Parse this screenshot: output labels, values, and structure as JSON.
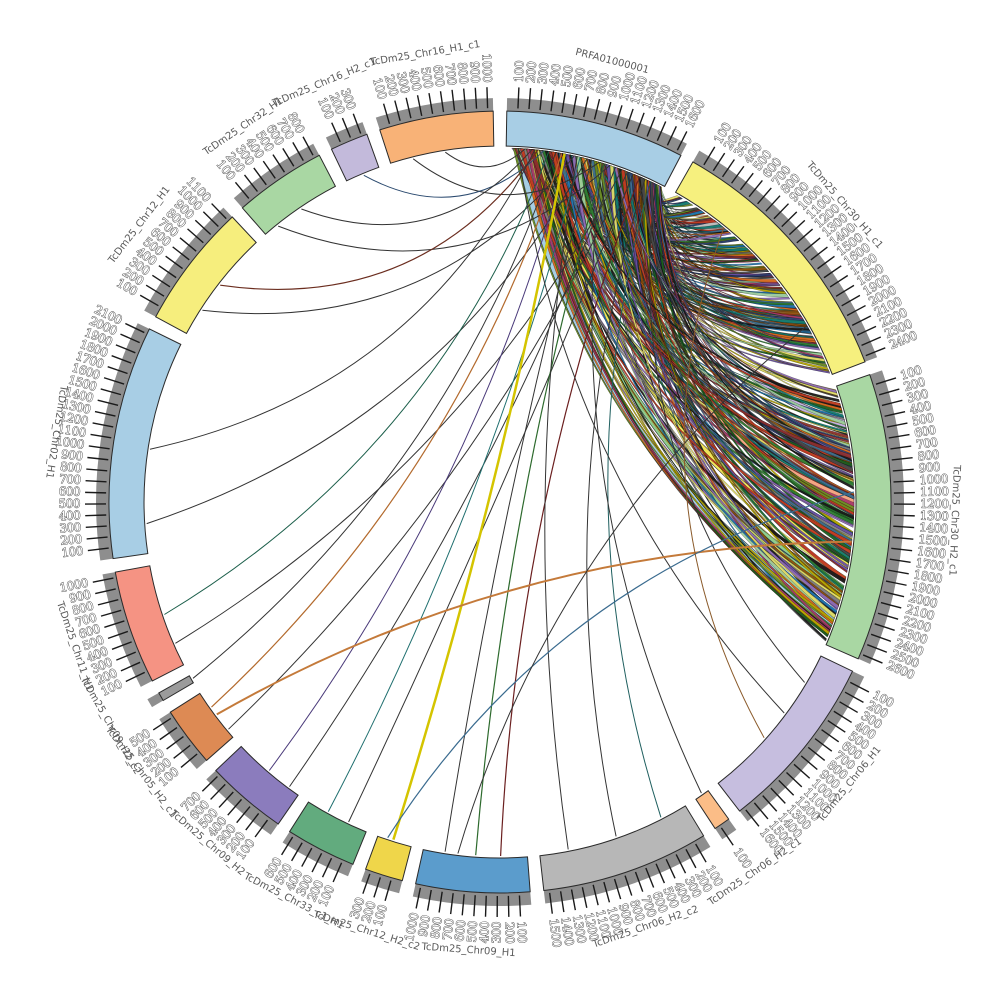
{
  "figure": {
    "kind": "circos-synteny-plot",
    "background": "#ffffff",
    "band_outline": "#2a2a2a",
    "outer_band_color": "#8e8e8e",
    "tick_color": "#1a1a1a",
    "label_color": "#5a5a5a"
  },
  "chart_data": {
    "type": "chord",
    "title": "",
    "tick_interval": 100,
    "gap_deg": 2.0,
    "start_deg": 1.0,
    "random_seed": 20230,
    "segments": [
      {
        "label": "PRFA01000001",
        "length": 1650,
        "color": "#a8cee5"
      },
      {
        "label": "TcDm25_Chr30_H1_c1",
        "length": 2450,
        "color": "#f6f07e"
      },
      {
        "label": "TcDm25_Chr30_H2_c1",
        "length": 2650,
        "color": "#a9d7a3"
      },
      {
        "label": "TcDm25_Chr06_H1",
        "length": 1650,
        "color": "#c6bedf"
      },
      {
        "label": "TcDm25_Chr06_H2_c1",
        "length": 150,
        "color": "#fbbd87"
      },
      {
        "label": "TcDm25_Chr06_H2_c2",
        "length": 1550,
        "color": "#b7b7b7"
      },
      {
        "label": "TcDm25_Chr09_H1",
        "length": 1050,
        "color": "#5b9ccc"
      },
      {
        "label": "TcDm25_Chr12_H2_c2",
        "length": 350,
        "color": "#efd64a"
      },
      {
        "label": "TcDm25_Chr33_c1_H1",
        "length": 650,
        "color": "#62ab7e"
      },
      {
        "label": "TcDm25_Chr09_H2",
        "length": 750,
        "color": "#8b7cbd"
      },
      {
        "label": "TcDm25_Chr05_H2_c1",
        "length": 550,
        "color": "#dd8a54"
      },
      {
        "label": "TcDm25_Chr09_H2_c2",
        "length": 80,
        "color": "#9b9b9b"
      },
      {
        "label": "TcDm25_Chr11_H1",
        "length": 1050,
        "color": "#f59383"
      },
      {
        "label": "TcDm25_Chr02_H1",
        "length": 2150,
        "color": "#a8cee5"
      },
      {
        "label": "TcDm25_Chr12_H1",
        "length": 1150,
        "color": "#f6ee7d"
      },
      {
        "label": "TcDm25_Chr32_H1",
        "length": 850,
        "color": "#a9d7a3"
      },
      {
        "label": "TcDm25_Chr16_H2_c1",
        "length": 350,
        "color": "#c3badb"
      },
      {
        "label": "TcDm25_Chr16_H1_c1",
        "length": 1050,
        "color": "#f8b277"
      }
    ],
    "link_palette": [
      "#1a1a1a",
      "#4a4a4a",
      "#7f7f7f",
      "#c23b22",
      "#8b2e2e",
      "#2e7d32",
      "#1b5e20",
      "#6b8e23",
      "#1f77b4",
      "#2c3e70",
      "#6a51a3",
      "#8e6bb5",
      "#d96a1f",
      "#8c510a",
      "#b8a800",
      "#11796f",
      "#a83a6a",
      "#3c6e8f",
      "#e3dc66",
      "#9ecf9e"
    ],
    "bundles": [
      {
        "from": [
          "PRFA01000001",
          60,
          1620
        ],
        "to": [
          "TcDm25_Chr30_H1_c1",
          30,
          2430
        ],
        "count": 160
      },
      {
        "from": [
          "PRFA01000001",
          60,
          1620
        ],
        "to": [
          "TcDm25_Chr30_H2_c1",
          40,
          2620
        ],
        "count": 165
      }
    ],
    "wide_ribbons": [
      {
        "from": [
          "PRFA01000001",
          150,
          70
        ],
        "to": [
          "TcDm25_Chr30_H2_c1",
          2430,
          130
        ],
        "color": "#a6cee3"
      },
      {
        "from": [
          "PRFA01000001",
          300,
          55
        ],
        "to": [
          "TcDm25_Chr30_H2_c1",
          2140,
          110
        ],
        "color": "#8fcf8f"
      },
      {
        "from": [
          "PRFA01000001",
          430,
          50
        ],
        "to": [
          "TcDm25_Chr30_H2_c1",
          1760,
          95
        ],
        "color": "#f0e35a"
      },
      {
        "from": [
          "PRFA01000001",
          620,
          45
        ],
        "to": [
          "TcDm25_Chr30_H2_c1",
          1210,
          80
        ],
        "color": "#f4a582"
      },
      {
        "from": [
          "PRFA01000001",
          810,
          40
        ],
        "to": [
          "TcDm25_Chr30_H1_c1",
          1900,
          90
        ],
        "color": "#a6cee3"
      },
      {
        "from": [
          "PRFA01000001",
          1000,
          40
        ],
        "to": [
          "TcDm25_Chr30_H1_c1",
          980,
          75
        ],
        "color": "#9fd89f"
      },
      {
        "from": [
          "PRFA01000001",
          1180,
          35
        ],
        "to": [
          "TcDm25_Chr30_H1_c1",
          540,
          60
        ],
        "color": "#bcbcbc"
      },
      {
        "from": [
          "PRFA01000001",
          1420,
          35
        ],
        "to": [
          "TcDm25_Chr30_H2_c1",
          400,
          60
        ],
        "color": "#c5b3e0"
      }
    ],
    "single_links": [
      {
        "from": [
          "PRFA01000001",
          190
        ],
        "to": [
          "TcDm25_Chr16_H1_c1",
          560
        ],
        "color": "#333333",
        "width": 1
      },
      {
        "from": [
          "PRFA01000001",
          950
        ],
        "to": [
          "TcDm25_Chr16_H1_c1",
          230
        ],
        "color": "#333333",
        "width": 1
      },
      {
        "from": [
          "PRFA01000001",
          380
        ],
        "to": [
          "TcDm25_Chr16_H2_c1",
          180
        ],
        "color": "#2b4a6f",
        "width": 1
      },
      {
        "from": [
          "PRFA01000001",
          260
        ],
        "to": [
          "TcDm25_Chr32_H1",
          440
        ],
        "color": "#333333",
        "width": 1
      },
      {
        "from": [
          "PRFA01000001",
          1060
        ],
        "to": [
          "TcDm25_Chr32_H1",
          150
        ],
        "color": "#333333",
        "width": 1
      },
      {
        "from": [
          "PRFA01000001",
          320
        ],
        "to": [
          "TcDm25_Chr12_H1",
          590
        ],
        "color": "#6b2d1f",
        "width": 1.2
      },
      {
        "from": [
          "PRFA01000001",
          690
        ],
        "to": [
          "TcDm25_Chr12_H1",
          280
        ],
        "color": "#333333",
        "width": 1
      },
      {
        "from": [
          "PRFA01000001",
          290
        ],
        "to": [
          "TcDm25_Chr02_H1",
          1050
        ],
        "color": "#333333",
        "width": 1
      },
      {
        "from": [
          "PRFA01000001",
          820
        ],
        "to": [
          "TcDm25_Chr02_H1",
          300
        ],
        "color": "#333333",
        "width": 1
      },
      {
        "from": [
          "PRFA01000001",
          430
        ],
        "to": [
          "TcDm25_Chr11_H1",
          540
        ],
        "color": "#1b5e4a",
        "width": 1
      },
      {
        "from": [
          "PRFA01000001",
          1190
        ],
        "to": [
          "TcDm25_Chr11_H1",
          230
        ],
        "color": "#333333",
        "width": 1
      },
      {
        "from": [
          "PRFA01000001",
          500
        ],
        "to": [
          "TcDm25_Chr09_H2_c2",
          40
        ],
        "color": "#333333",
        "width": 1
      },
      {
        "from": [
          "PRFA01000001",
          560
        ],
        "to": [
          "TcDm25_Chr05_H2_c1",
          370
        ],
        "color": "#b36a2d",
        "width": 1.2
      },
      {
        "from": [
          "PRFA01000001",
          1250
        ],
        "to": [
          "TcDm25_Chr05_H2_c1",
          90
        ],
        "color": "#333333",
        "width": 1
      },
      {
        "from": [
          "PRFA01000001",
          620
        ],
        "to": [
          "TcDm25_Chr09_H2",
          380
        ],
        "color": "#4a3a7a",
        "width": 1
      },
      {
        "from": [
          "PRFA01000001",
          1120
        ],
        "to": [
          "TcDm25_Chr09_H2",
          120
        ],
        "color": "#333333",
        "width": 1
      },
      {
        "from": [
          "PRFA01000001",
          750
        ],
        "to": [
          "TcDm25_Chr33_c1_H1",
          430
        ],
        "color": "#1f6f6f",
        "width": 1
      },
      {
        "from": [
          "PRFA01000001",
          1310
        ],
        "to": [
          "TcDm25_Chr33_c1_H1",
          200
        ],
        "color": "#333333",
        "width": 1
      },
      {
        "from": [
          "PRFA01000001",
          590
        ],
        "to": [
          "TcDm25_Chr12_H2_c2",
          190
        ],
        "color": "#d4c400",
        "width": 2.5
      },
      {
        "from": [
          "PRFA01000001",
          870
        ],
        "to": [
          "TcDm25_Chr09_H1",
          830
        ],
        "color": "#333333",
        "width": 1
      },
      {
        "from": [
          "PRFA01000001",
          1000
        ],
        "to": [
          "TcDm25_Chr09_H1",
          520
        ],
        "color": "#2d6a2d",
        "width": 1.2
      },
      {
        "from": [
          "PRFA01000001",
          1380
        ],
        "to": [
          "TcDm25_Chr09_H1",
          270
        ],
        "color": "#6b1f1f",
        "width": 1.2
      },
      {
        "from": [
          "PRFA01000001",
          720
        ],
        "to": [
          "TcDm25_Chr06_H2_c2",
          1260
        ],
        "color": "#333333",
        "width": 1
      },
      {
        "from": [
          "PRFA01000001",
          1440
        ],
        "to": [
          "TcDm25_Chr06_H2_c2",
          760
        ],
        "color": "#333333",
        "width": 1
      },
      {
        "from": [
          "PRFA01000001",
          1500
        ],
        "to": [
          "TcDm25_Chr06_H2_c2",
          270
        ],
        "color": "#1f5f5f",
        "width": 1
      },
      {
        "from": [
          "PRFA01000001",
          980
        ],
        "to": [
          "TcDm25_Chr06_H2_c1",
          70
        ],
        "color": "#333333",
        "width": 1
      },
      {
        "from": [
          "PRFA01000001",
          120
        ],
        "to": [
          "TcDm25_Chr06_H1",
          680
        ],
        "color": "#333333",
        "width": 1
      },
      {
        "from": [
          "PRFA01000001",
          1560
        ],
        "to": [
          "TcDm25_Chr06_H1",
          310
        ],
        "color": "#333333",
        "width": 1
      },
      {
        "from": [
          "TcDm25_Chr30_H2_c1",
          1580
        ],
        "to": [
          "TcDm25_Chr05_H2_c1",
          280
        ],
        "color": "#c47a3a",
        "width": 2
      },
      {
        "from": [
          "TcDm25_Chr30_H2_c1",
          1080
        ],
        "to": [
          "TcDm25_Chr12_H2_c2",
          250
        ],
        "color": "#3a6b8f",
        "width": 1.2
      },
      {
        "from": [
          "TcDm25_Chr30_H1_c1",
          1900
        ],
        "to": [
          "TcDm25_Chr09_H1",
          700
        ],
        "color": "#333333",
        "width": 1
      },
      {
        "from": [
          "TcDm25_Chr30_H1_c1",
          600
        ],
        "to": [
          "TcDm25_Chr06_H1",
          1000
        ],
        "color": "#8a5a2a",
        "width": 1
      }
    ]
  }
}
